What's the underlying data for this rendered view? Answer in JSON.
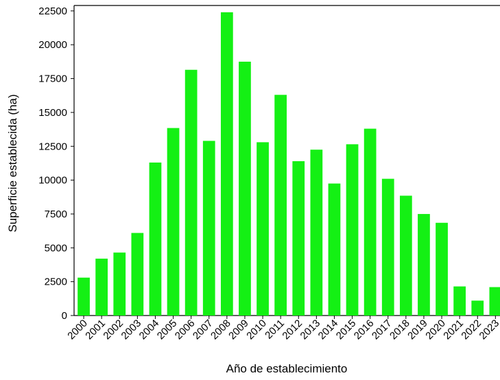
{
  "chart_data": {
    "type": "bar",
    "x_label": "Año de establecimiento",
    "y_label": "Superficie establecida (ha)",
    "categories": [
      "2000",
      "2001",
      "2002",
      "2003",
      "2004",
      "2005",
      "2006",
      "2007",
      "2008",
      "2009",
      "2010",
      "2011",
      "2012",
      "2013",
      "2014",
      "2015",
      "2016",
      "2017",
      "2018",
      "2019",
      "2020",
      "2021",
      "2022",
      "2023"
    ],
    "values": [
      2800,
      4200,
      4650,
      6100,
      11300,
      13850,
      18150,
      12900,
      22400,
      18750,
      12800,
      16300,
      11400,
      12250,
      9750,
      12650,
      13800,
      10100,
      8850,
      7500,
      6850,
      2150,
      1100,
      2100
    ],
    "color": "#14f014",
    "ylim": [
      0,
      22900
    ],
    "yticks": [
      0,
      2500,
      5000,
      7500,
      10000,
      12500,
      15000,
      17500,
      20000,
      22500
    ],
    "grid": false
  }
}
